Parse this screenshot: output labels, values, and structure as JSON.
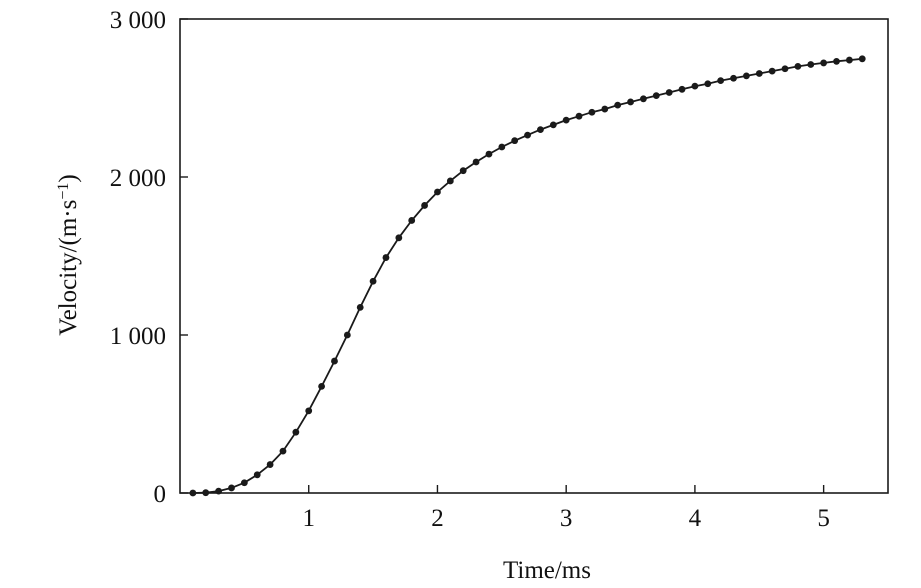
{
  "chart_data": {
    "type": "line",
    "title": "",
    "xlabel": "Time/ms",
    "ylabel": "Velocity/(m·s",
    "ylabel_unit_exponent": "−1",
    "ylabel_close": ")",
    "xlim": [
      0.0,
      5.5
    ],
    "ylim": [
      0,
      3000
    ],
    "x_ticks": [
      1,
      2,
      3,
      4,
      5
    ],
    "x_tick_labels": [
      "1",
      "2",
      "3",
      "4",
      "5"
    ],
    "y_ticks": [
      0,
      1000,
      2000,
      3000
    ],
    "y_tick_labels": [
      "0",
      "1 000",
      "2 000",
      "3 000"
    ],
    "grid": false,
    "legend": "none",
    "line_color": "#1a1a1a",
    "marker": "filled-circle",
    "series": [
      {
        "x": [
          0.1,
          0.2,
          0.3,
          0.4,
          0.5,
          0.6,
          0.7,
          0.8,
          0.9,
          1.0,
          1.1,
          1.2,
          1.3,
          1.4,
          1.5,
          1.6,
          1.7,
          1.8,
          1.9,
          2.0,
          2.1,
          2.2,
          2.3,
          2.4,
          2.5,
          2.6,
          2.7,
          2.8,
          2.9,
          3.0,
          3.1,
          3.2,
          3.3,
          3.4,
          3.5,
          3.6,
          3.7,
          3.8,
          3.9,
          4.0,
          4.1,
          4.2,
          4.3,
          4.4,
          4.5,
          4.6,
          4.7,
          4.8,
          4.9,
          5.0,
          5.1,
          5.2,
          5.3
        ],
        "values": [
          0,
          2,
          12,
          32,
          65,
          115,
          180,
          265,
          385,
          520,
          675,
          835,
          1000,
          1175,
          1340,
          1490,
          1615,
          1725,
          1820,
          1905,
          1975,
          2040,
          2095,
          2145,
          2190,
          2230,
          2265,
          2300,
          2330,
          2360,
          2385,
          2410,
          2430,
          2455,
          2475,
          2495,
          2515,
          2535,
          2555,
          2575,
          2590,
          2610,
          2625,
          2640,
          2655,
          2670,
          2685,
          2700,
          2712,
          2722,
          2732,
          2740,
          2748
        ]
      }
    ]
  }
}
